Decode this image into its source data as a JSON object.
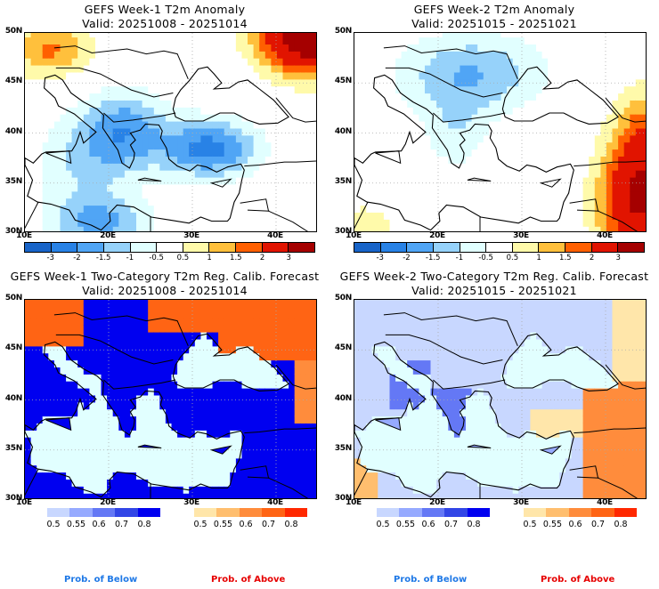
{
  "chart_data": [
    {
      "type": "heatmap",
      "title": "GEFS Week-1 T2m Anomaly",
      "subtitle": "Valid: 20251008 - 20251014",
      "x_ticks": [
        "10E",
        "20E",
        "30E",
        "40E"
      ],
      "y_ticks": [
        "50N",
        "45N",
        "40N",
        "35N",
        "30N"
      ],
      "xlim": [
        10,
        45
      ],
      "ylim": [
        30,
        50
      ],
      "colorbar": {
        "labels": [
          "-3",
          "-2",
          "-1.5",
          "-1",
          "-0.5",
          "0.5",
          "1",
          "1.5",
          "2",
          "3"
        ],
        "colors": [
          "#1864c8",
          "#2882e6",
          "#50a5f5",
          "#96d2fa",
          "#e1ffff",
          "#ffffff",
          "#fffaaa",
          "#ffc03c",
          "#ff6000",
          "#e11400",
          "#a50000"
        ]
      }
    },
    {
      "type": "heatmap",
      "title": "GEFS Week-2 T2m Anomaly",
      "subtitle": "Valid: 20251015 - 20251021",
      "x_ticks": [
        "10E",
        "20E",
        "30E",
        "40E"
      ],
      "y_ticks": [
        "50N",
        "45N",
        "40N",
        "35N",
        "30N"
      ],
      "xlim": [
        10,
        45
      ],
      "ylim": [
        30,
        50
      ],
      "colorbar": {
        "labels": [
          "-3",
          "-2",
          "-1.5",
          "-1",
          "-0.5",
          "0.5",
          "1",
          "1.5",
          "2",
          "3"
        ],
        "colors": [
          "#1864c8",
          "#2882e6",
          "#50a5f5",
          "#96d2fa",
          "#e1ffff",
          "#ffffff",
          "#fffaaa",
          "#ffc03c",
          "#ff6000",
          "#e11400",
          "#a50000"
        ]
      }
    },
    {
      "type": "heatmap",
      "title": "GEFS Week-1 Two-Category T2m Reg. Calib. Forecast",
      "subtitle": "Valid: 20251008 - 20251014",
      "x_ticks": [
        "10E",
        "20E",
        "30E",
        "40E"
      ],
      "y_ticks": [
        "50N",
        "45N",
        "40N",
        "35N",
        "30N"
      ],
      "xlim": [
        10,
        45
      ],
      "ylim": [
        30,
        50
      ],
      "below_bar": {
        "labels": [
          "0.5",
          "0.55",
          "0.6",
          "0.7",
          "0.8"
        ],
        "colors": [
          "#c8d7ff",
          "#96aaff",
          "#6478f5",
          "#3246e6",
          "#0000f0"
        ],
        "caption": "Prob. of Below"
      },
      "above_bar": {
        "labels": [
          "0.5",
          "0.55",
          "0.6",
          "0.7",
          "0.8"
        ],
        "colors": [
          "#ffe6aa",
          "#ffbe6e",
          "#ff8c3c",
          "#ff6414",
          "#ff2800"
        ],
        "caption": "Prob. of Above"
      }
    },
    {
      "type": "heatmap",
      "title": "GEFS Week-2 Two-Category T2m Reg. Calib. Forecast",
      "subtitle": "Valid: 20251015 - 20251021",
      "x_ticks": [
        "10E",
        "20E",
        "30E",
        "40E"
      ],
      "y_ticks": [
        "50N",
        "45N",
        "40N",
        "35N",
        "30N"
      ],
      "xlim": [
        10,
        45
      ],
      "ylim": [
        30,
        50
      ],
      "below_bar": {
        "labels": [
          "0.5",
          "0.55",
          "0.6",
          "0.7",
          "0.8"
        ],
        "colors": [
          "#c8d7ff",
          "#96aaff",
          "#6478f5",
          "#3246e6",
          "#0000f0"
        ],
        "caption": "Prob. of Below"
      },
      "above_bar": {
        "labels": [
          "0.5",
          "0.55",
          "0.6",
          "0.7",
          "0.8"
        ],
        "colors": [
          "#ffe6aa",
          "#ffbe6e",
          "#ff8c3c",
          "#ff6414",
          "#ff2800"
        ],
        "caption": "Prob. of Above"
      }
    }
  ],
  "colors": {
    "sea": "#e1ffff",
    "below_caption": "#1e78e6",
    "above_caption": "#e60000"
  }
}
